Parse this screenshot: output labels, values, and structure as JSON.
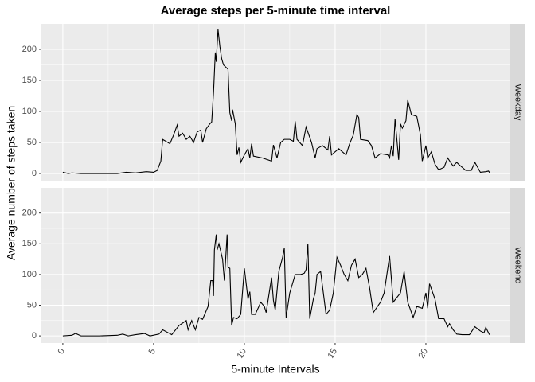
{
  "chart_data": [
    {
      "type": "line",
      "title": "Average steps per 5-minute time interval",
      "xlabel": "5-minute Intervals",
      "ylabel": "Average number of steps taken",
      "facet": "Weekday",
      "color": "#000000",
      "grid": true,
      "xlim": [
        -1.18,
        24.65
      ],
      "ylim": [
        -11.5,
        241
      ],
      "yticks": [
        0,
        50,
        100,
        150,
        200
      ],
      "x": [
        0,
        0.3,
        0.5,
        1,
        2,
        3,
        3.5,
        4,
        4.6,
        5,
        5.2,
        5.4,
        5.5,
        5.9,
        6.1,
        6.3,
        6.4,
        6.6,
        6.8,
        7.0,
        7.2,
        7.4,
        7.6,
        7.7,
        7.9,
        8.1,
        8.2,
        8.3,
        8.4,
        8.45,
        8.55,
        8.65,
        8.75,
        8.85,
        9.1,
        9.2,
        9.3,
        9.35,
        9.5,
        9.6,
        9.7,
        9.8,
        10.0,
        10.2,
        10.3,
        10.4,
        10.5,
        11.0,
        11.5,
        11.6,
        11.8,
        12.0,
        12.2,
        12.5,
        12.7,
        12.8,
        12.9,
        13.2,
        13.4,
        13.7,
        13.9,
        14.0,
        14.3,
        14.6,
        14.7,
        14.8,
        15.2,
        15.6,
        15.8,
        16.0,
        16.2,
        16.3,
        16.4,
        16.8,
        17.0,
        17.2,
        17.5,
        17.9,
        18.0,
        18.1,
        18.2,
        18.3,
        18.5,
        18.6,
        18.7,
        18.9,
        19.0,
        19.2,
        19.5,
        19.7,
        19.8,
        20.0,
        20.1,
        20.3,
        20.5,
        20.7,
        21.0,
        21.2,
        21.5,
        21.7,
        21.8,
        22.2,
        22.5,
        22.7,
        23.0,
        23.3,
        23.45,
        23.55
      ],
      "values": [
        2,
        0,
        1,
        0,
        0,
        0,
        2,
        1,
        3,
        2,
        5,
        20,
        55,
        48,
        62,
        78,
        60,
        65,
        55,
        60,
        50,
        67,
        70,
        50,
        72,
        80,
        83,
        130,
        195,
        180,
        232,
        205,
        185,
        175,
        168,
        98,
        85,
        103,
        80,
        30,
        42,
        18,
        30,
        40,
        25,
        48,
        28,
        25,
        20,
        46,
        25,
        50,
        55,
        55,
        52,
        84,
        55,
        45,
        75,
        50,
        25,
        40,
        45,
        38,
        60,
        30,
        40,
        30,
        48,
        62,
        95,
        90,
        55,
        53,
        45,
        25,
        32,
        30,
        25,
        45,
        28,
        88,
        22,
        80,
        73,
        85,
        118,
        95,
        92,
        62,
        20,
        45,
        25,
        35,
        15,
        6,
        10,
        25,
        12,
        18,
        15,
        5,
        5,
        18,
        2,
        3,
        4,
        0
      ]
    },
    {
      "type": "line",
      "facet": "Weekend",
      "color": "#000000",
      "grid": true,
      "xlim": [
        -1.18,
        24.65
      ],
      "ylim": [
        -11.5,
        241
      ],
      "yticks": [
        0,
        50,
        100,
        150,
        200
      ],
      "xticks": [
        0,
        5,
        10,
        15,
        20
      ],
      "x": [
        0,
        0.5,
        0.7,
        1,
        2,
        3,
        3.3,
        3.6,
        4.0,
        4.5,
        4.8,
        5.3,
        5.5,
        6.0,
        6.4,
        6.8,
        6.9,
        7.1,
        7.3,
        7.5,
        7.7,
        8.0,
        8.15,
        8.25,
        8.3,
        8.35,
        8.45,
        8.5,
        8.6,
        8.8,
        8.9,
        9.05,
        9.1,
        9.2,
        9.3,
        9.4,
        9.6,
        9.8,
        10.0,
        10.2,
        10.3,
        10.4,
        10.6,
        10.8,
        10.9,
        11.1,
        11.2,
        11.5,
        11.6,
        11.7,
        11.9,
        12.1,
        12.2,
        12.3,
        12.5,
        12.8,
        13.1,
        13.3,
        13.4,
        13.5,
        13.6,
        13.8,
        13.9,
        14.0,
        14.2,
        14.5,
        14.7,
        14.9,
        15.1,
        15.3,
        15.5,
        15.7,
        15.9,
        16.1,
        16.3,
        16.5,
        16.7,
        16.9,
        17.1,
        17.5,
        17.7,
        18.0,
        18.2,
        18.6,
        18.8,
        19.0,
        19.3,
        19.5,
        19.8,
        20.0,
        20.1,
        20.2,
        20.5,
        20.7,
        21.0,
        21.2,
        21.3,
        21.5,
        21.7,
        22.0,
        22.4,
        22.7,
        23.0,
        23.2,
        23.3,
        23.5
      ],
      "values": [
        0,
        1,
        4,
        0,
        0,
        1,
        3,
        0,
        2,
        4,
        0,
        3,
        10,
        2,
        17,
        25,
        10,
        25,
        10,
        30,
        27,
        48,
        90,
        90,
        65,
        140,
        165,
        140,
        150,
        125,
        90,
        165,
        112,
        110,
        17,
        30,
        28,
        35,
        110,
        60,
        72,
        35,
        35,
        48,
        55,
        48,
        38,
        95,
        58,
        42,
        105,
        127,
        143,
        30,
        70,
        100,
        100,
        102,
        108,
        150,
        28,
        60,
        70,
        100,
        105,
        35,
        42,
        70,
        128,
        115,
        100,
        90,
        115,
        125,
        95,
        100,
        110,
        78,
        38,
        55,
        70,
        130,
        55,
        70,
        105,
        55,
        30,
        48,
        45,
        70,
        45,
        85,
        60,
        28,
        28,
        15,
        20,
        10,
        3,
        2,
        2,
        15,
        8,
        5,
        14,
        2
      ]
    }
  ]
}
